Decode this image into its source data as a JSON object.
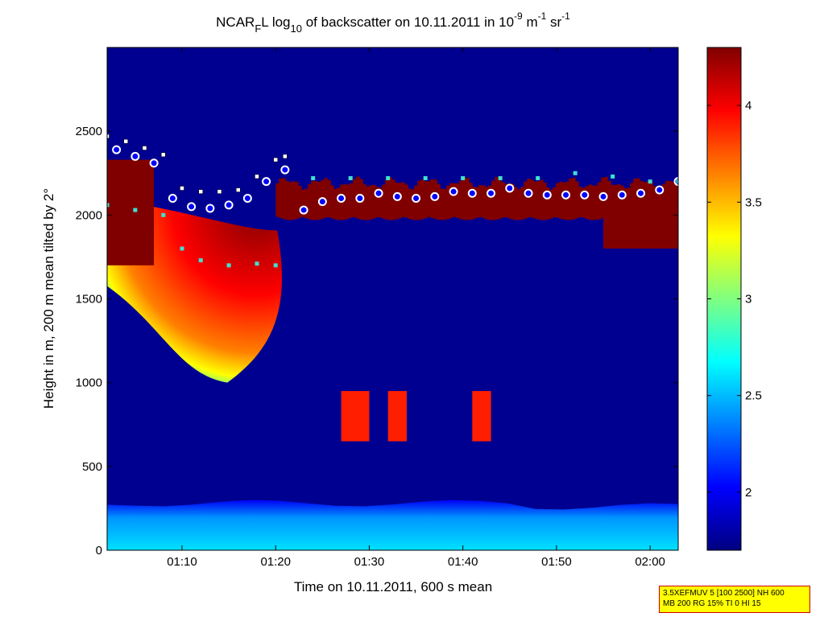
{
  "figure": {
    "title_parts": [
      "NCAR",
      "F",
      "L log",
      "10",
      " of backscatter on 10.11.2011 in 10",
      "-9",
      " m",
      "-1",
      " sr",
      "-1"
    ],
    "info_box": [
      "3.5XEFMUV 5 [100 2500] NH 600",
      "MB 200 RG 15% TI 0 HI 15"
    ]
  },
  "colors": {
    "background": "#000090",
    "colormap": [
      "#000080",
      "#0000ff",
      "#0080ff",
      "#00ffff",
      "#80ff80",
      "#ffff00",
      "#ff8000",
      "#ff0000",
      "#800000"
    ],
    "layer_marker_face": "#0000ff",
    "layer_marker_edge": "#ffffff",
    "top_marker": "#ffffff",
    "base_marker": "#40e0d0",
    "outline_marker": "#9b1b4a"
  },
  "chart_data": {
    "type": "heatmap",
    "title": "NCAR_F L log10 of backscatter on 10.11.2011 in 10^-9 m^-1 sr^-1",
    "xlabel": "Time on 10.11.2011, 600 s mean",
    "ylabel": "Height in m, 200 m mean tilted by 2°",
    "xlim": [
      "01:02",
      "02:03"
    ],
    "ylim": [
      0,
      3000
    ],
    "xticks": [
      "01:10",
      "01:20",
      "01:30",
      "01:40",
      "01:50",
      "02:00"
    ],
    "yticks": [
      0,
      500,
      1000,
      1500,
      2000,
      2500
    ],
    "colorbar": {
      "range": [
        1.7,
        4.3
      ],
      "ticks": [
        "2",
        "2.5",
        "3",
        "3.5",
        "4"
      ]
    },
    "regions": [
      {
        "name": "near-surface layer",
        "x": [
          "01:02",
          "02:03"
        ],
        "height": [
          0,
          300
        ],
        "value": 2.5
      },
      {
        "name": "decaying low cloud",
        "x": [
          "01:02",
          "01:20"
        ],
        "height": [
          1000,
          2100
        ],
        "value": 4.1
      },
      {
        "name": "cloud layer",
        "x": [
          "01:20",
          "02:03"
        ],
        "height": [
          1950,
          2200
        ],
        "value": 4.2
      },
      {
        "name": "low cloud patches",
        "x": [
          "01:27",
          "01:43"
        ],
        "height": [
          650,
          950
        ],
        "value": 3.9
      }
    ],
    "series": [
      {
        "name": "layer",
        "x": [
          "01:03",
          "01:05",
          "01:07",
          "01:09",
          "01:11",
          "01:13",
          "01:15",
          "01:17",
          "01:19",
          "01:21",
          "01:23",
          "01:25",
          "01:27",
          "01:29",
          "01:31",
          "01:33",
          "01:35",
          "01:37",
          "01:39",
          "01:41",
          "01:43",
          "01:45",
          "01:47",
          "01:49",
          "01:51",
          "01:53",
          "01:55",
          "01:57",
          "01:59",
          "02:01",
          "02:03"
        ],
        "y": [
          2390,
          2350,
          2310,
          2100,
          2050,
          2040,
          2060,
          2100,
          2200,
          2270,
          2030,
          2080,
          2100,
          2100,
          2130,
          2110,
          2100,
          2110,
          2140,
          2130,
          2130,
          2160,
          2130,
          2120,
          2120,
          2120,
          2110,
          2120,
          2130,
          2150,
          2200
        ]
      },
      {
        "name": "tops",
        "x": [
          "01:02",
          "01:04",
          "01:06",
          "01:08",
          "01:10",
          "01:12",
          "01:14",
          "01:16",
          "01:18",
          "01:20",
          "01:21"
        ],
        "y": [
          2470,
          2440,
          2400,
          2360,
          2160,
          2140,
          2140,
          2150,
          2230,
          2330,
          2350
        ]
      },
      {
        "name": "bases",
        "x": [
          "01:02",
          "01:05",
          "01:08",
          "01:10",
          "01:12",
          "01:15",
          "01:18",
          "01:20",
          "01:24",
          "01:28",
          "01:32",
          "01:36",
          "01:40",
          "01:44",
          "01:48",
          "01:52",
          "01:56",
          "02:00",
          "02:03"
        ],
        "y": [
          2060,
          2030,
          2000,
          1800,
          1730,
          1700,
          1710,
          1700,
          2220,
          2220,
          2220,
          2220,
          2220,
          2220,
          2220,
          2250,
          2230,
          2200,
          2200
        ]
      }
    ]
  }
}
